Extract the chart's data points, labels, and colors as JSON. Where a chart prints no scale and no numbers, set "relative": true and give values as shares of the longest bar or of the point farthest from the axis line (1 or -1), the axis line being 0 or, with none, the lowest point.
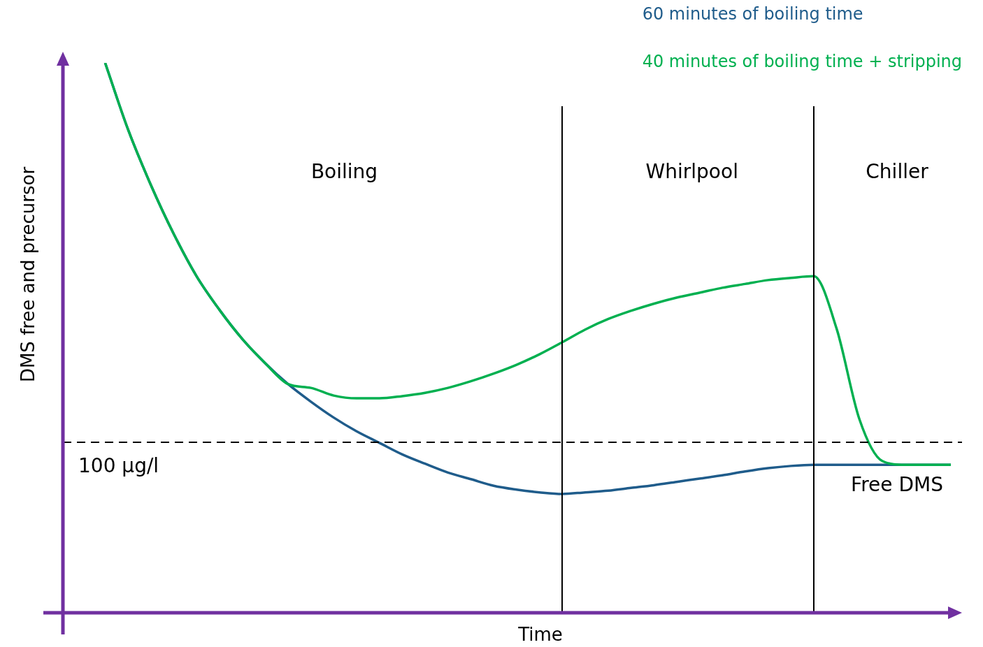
{
  "chart_data": {
    "type": "line",
    "relative": true,
    "xlabel": "Time",
    "ylabel": "DMS free and precursor",
    "legend": "top right",
    "marker": "none",
    "categories": [
      null,
      null,
      null,
      null,
      null,
      null,
      null,
      null,
      null,
      null,
      null,
      null,
      null,
      null,
      null,
      null,
      null,
      null,
      null,
      null,
      null,
      null,
      null,
      null,
      null,
      null,
      null,
      null,
      null,
      null,
      null,
      null,
      null,
      null,
      null,
      null,
      null,
      null,
      null,
      null
    ],
    "series": [
      {
        "name": "60 minutes of boiling time",
        "color": "#1f5c8b",
        "values": [
          null,
          null,
          1.0,
          0.879,
          0.778,
          0.689,
          0.612,
          0.551,
          0.498,
          0.454,
          0.416,
          0.384,
          0.355,
          0.33,
          0.309,
          0.288,
          0.271,
          0.255,
          0.243,
          0.231,
          0.224,
          0.219,
          0.216,
          0.219,
          0.222,
          0.227,
          0.232,
          0.238,
          0.244,
          0.25,
          0.257,
          0.263,
          0.267,
          0.269,
          0.269,
          0.269,
          0.269,
          0.269,
          0.269,
          0.269
        ]
      },
      {
        "name": "40 minutes of boiling time + stripping",
        "color": "#00b050",
        "values": [
          null,
          null,
          1.0,
          0.879,
          0.778,
          0.689,
          0.612,
          0.551,
          0.498,
          0.454,
          0.416,
          0.409,
          0.395,
          0.39,
          0.39,
          0.394,
          0.4,
          0.409,
          0.421,
          0.435,
          0.451,
          0.47,
          0.492,
          0.515,
          0.534,
          0.549,
          0.562,
          0.573,
          0.582,
          0.591,
          0.598,
          0.605,
          0.609,
          0.612,
          0.517,
          0.352,
          0.276,
          0.269,
          0.269,
          0.269
        ]
      }
    ],
    "ref_lines": [
      {
        "axis": "y",
        "value": 0.31,
        "label": "100 µg/l",
        "color": "#000000",
        "line_style": "dashed"
      }
    ],
    "annotations": [
      "Boiling",
      "Whirlpool",
      "Chiller",
      "Free DMS"
    ]
  }
}
